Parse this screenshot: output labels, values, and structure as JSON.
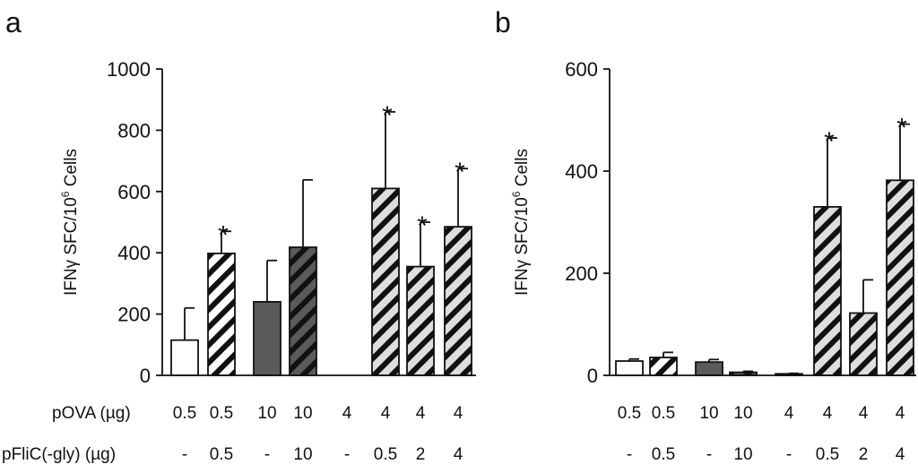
{
  "chart_data": [
    {
      "panel_label": "a",
      "type": "bar",
      "ylabel_parts": [
        "IFN",
        "γ",
        " SFC/10",
        "6",
        " Cells"
      ],
      "ylim": [
        0,
        1000
      ],
      "yticks": [
        "0",
        "200",
        "400",
        "600",
        "800",
        "1000"
      ],
      "ytick_values": [
        0,
        200,
        400,
        600,
        800,
        1000
      ],
      "row_labels": [
        "pOVA (µg)",
        "pFliC(-gly) (µg)"
      ],
      "bars": [
        {
          "pova": "0.5",
          "pflic": "-",
          "value": 115,
          "error": 105,
          "style": "white",
          "star": ""
        },
        {
          "pova": "0.5",
          "pflic": "0.5",
          "value": 398,
          "error": 72,
          "style": "white-hatch",
          "star": "*"
        },
        {
          "pova": "10",
          "pflic": "-",
          "value": 240,
          "error": 135,
          "style": "dark",
          "star": ""
        },
        {
          "pova": "10",
          "pflic": "10",
          "value": 418,
          "error": 220,
          "style": "dark-hatch",
          "star": ""
        },
        {
          "pova": "4",
          "pflic": "-",
          "value": 0,
          "error": 0,
          "style": "none",
          "star": ""
        },
        {
          "pova": "4",
          "pflic": "0.5",
          "value": 610,
          "error": 250,
          "style": "grey-hatch",
          "star": "*"
        },
        {
          "pova": "4",
          "pflic": "2",
          "value": 355,
          "error": 145,
          "style": "grey-hatch",
          "star": "*"
        },
        {
          "pova": "4",
          "pflic": "4",
          "value": 485,
          "error": 190,
          "style": "grey-hatch",
          "star": "*"
        }
      ]
    },
    {
      "panel_label": "b",
      "type": "bar",
      "ylabel_parts": [
        "IFN",
        "γ",
        " SFC/10",
        "6",
        " Cells"
      ],
      "ylim": [
        0,
        600
      ],
      "yticks": [
        "0",
        "200",
        "400",
        "600"
      ],
      "ytick_values": [
        0,
        200,
        400,
        600
      ],
      "row_labels": [
        "",
        ""
      ],
      "bars": [
        {
          "pova": "0.5",
          "pflic": "-",
          "value": 28,
          "error": 4,
          "style": "white",
          "star": ""
        },
        {
          "pova": "0.5",
          "pflic": "0.5",
          "value": 35,
          "error": 10,
          "style": "white-hatch",
          "star": ""
        },
        {
          "pova": "10",
          "pflic": "-",
          "value": 26,
          "error": 5,
          "style": "dark",
          "star": ""
        },
        {
          "pova": "10",
          "pflic": "10",
          "value": 6,
          "error": 2,
          "style": "dark-hatch",
          "star": ""
        },
        {
          "pova": "4",
          "pflic": "-",
          "value": 3,
          "error": 1,
          "style": "grey-hatch",
          "star": ""
        },
        {
          "pova": "4",
          "pflic": "0.5",
          "value": 330,
          "error": 135,
          "style": "grey-hatch",
          "star": "*"
        },
        {
          "pova": "4",
          "pflic": "2",
          "value": 122,
          "error": 65,
          "style": "grey-hatch",
          "star": ""
        },
        {
          "pova": "4",
          "pflic": "4",
          "value": 382,
          "error": 110,
          "style": "grey-hatch",
          "star": "*"
        }
      ]
    }
  ],
  "colors": {
    "white": "#ffffff",
    "dark": "#5a5a5a",
    "grey": "#dedede",
    "outline": "#111111"
  }
}
